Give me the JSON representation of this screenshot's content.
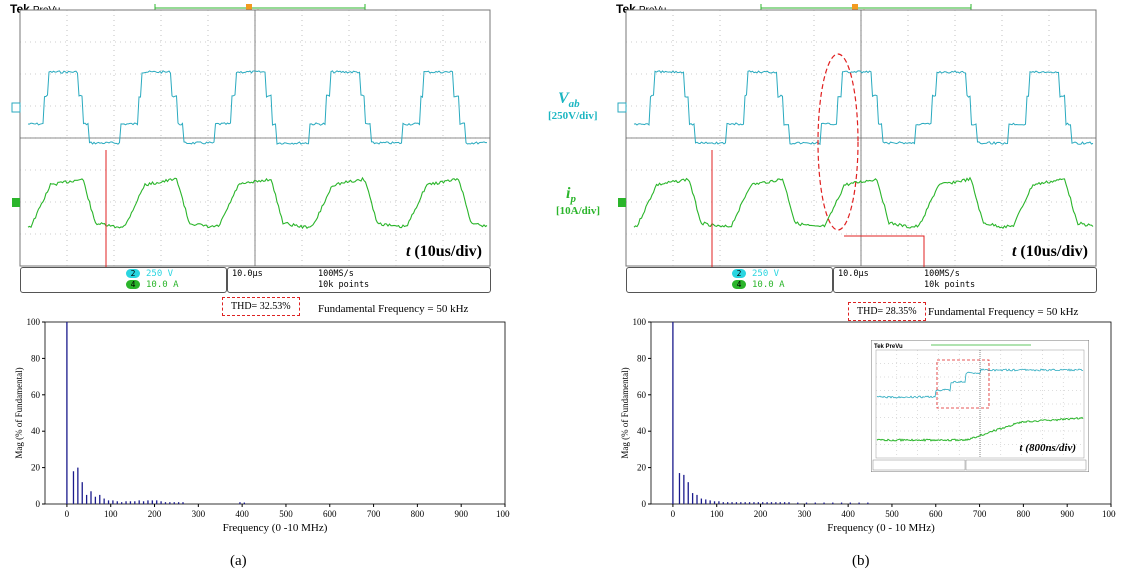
{
  "panels": [
    {
      "id": "a",
      "brand": "Tek",
      "mode": "PreVu",
      "time_label_t": "t",
      "time_label_div": " (10us/div)",
      "channels": [
        {
          "num": "2",
          "value": "250 V",
          "color": "#2ad5e0"
        },
        {
          "num": "4",
          "value": "10.0 A",
          "color": "#2bb52b"
        }
      ],
      "timebase": "10.0μs",
      "sample_rate": "100MS/s",
      "record": "10k points",
      "thd": "THD= 32.53%",
      "fundamental": "Fundamental Frequency = 50 kHz",
      "caption": "(a)"
    },
    {
      "id": "b",
      "brand": "Tek",
      "mode": "PreVu",
      "vab_label": "V",
      "vab_sub": "ab",
      "vab_scale": "[250V/div]",
      "ip_label": "i",
      "ip_sub": "p",
      "ip_scale": "[10A/div]",
      "time_label_t": "t",
      "time_label_div": " (10us/div)",
      "channels": [
        {
          "num": "2",
          "value": "250 V",
          "color": "#2ad5e0"
        },
        {
          "num": "4",
          "value": "10.0 A",
          "color": "#2bb52b"
        }
      ],
      "timebase": "10.0μs",
      "sample_rate": "100MS/s",
      "record": "10k points",
      "thd": "THD= 28.35%",
      "fundamental": "Fundamental Frequency = 50 kHz",
      "inset_time_label": "t (800ns/div)",
      "caption": "(b)"
    }
  ],
  "chart_data": [
    {
      "type": "bar",
      "xlabel": "Frequency (0 -10 MHz)",
      "ylabel": "Mag (% of Fundamental)",
      "xlim": [
        -50,
        1000
      ],
      "ylim": [
        0,
        100
      ],
      "xticks": [
        0,
        100,
        200,
        300,
        400,
        500,
        600,
        700,
        800,
        900,
        1000
      ],
      "yticks": [
        0,
        20,
        40,
        60,
        80,
        100
      ],
      "x": [
        0,
        15,
        25,
        35,
        45,
        55,
        65,
        75,
        85,
        95,
        105,
        115,
        125,
        135,
        145,
        155,
        165,
        175,
        185,
        195,
        205,
        215,
        225,
        235,
        245,
        255,
        265,
        395,
        405
      ],
      "values": [
        100,
        18,
        20,
        12,
        5,
        7,
        4,
        5,
        3,
        2,
        2,
        1.5,
        1,
        1.5,
        1.5,
        1.5,
        2,
        1.5,
        2,
        2,
        2,
        1.5,
        1,
        1,
        1,
        1,
        1,
        1,
        0.8
      ],
      "color": "#1a1a8c"
    },
    {
      "type": "bar",
      "xlabel": "Frequency (0 - 10 MHz)",
      "ylabel": "Mag (% of Fundamental)",
      "xlim": [
        -50,
        1000
      ],
      "ylim": [
        0,
        100
      ],
      "xticks": [
        0,
        100,
        200,
        300,
        400,
        500,
        600,
        700,
        800,
        900,
        1000
      ],
      "yticks": [
        0,
        20,
        40,
        60,
        80,
        100
      ],
      "x": [
        0,
        15,
        25,
        35,
        45,
        55,
        65,
        75,
        85,
        95,
        105,
        115,
        125,
        135,
        145,
        155,
        165,
        175,
        185,
        195,
        205,
        215,
        225,
        235,
        245,
        255,
        265,
        285,
        305,
        325,
        345,
        365,
        385,
        405,
        425,
        445
      ],
      "values": [
        100,
        17,
        16,
        12,
        6,
        5,
        3,
        2.5,
        2,
        1.5,
        1.5,
        1,
        1,
        1,
        1,
        1,
        1,
        1,
        1,
        1,
        1,
        1,
        1,
        1,
        1,
        1,
        1,
        0.8,
        0.8,
        0.8,
        0.8,
        0.8,
        0.8,
        0.8,
        0.8,
        0.8
      ],
      "color": "#1a1a8c"
    }
  ]
}
